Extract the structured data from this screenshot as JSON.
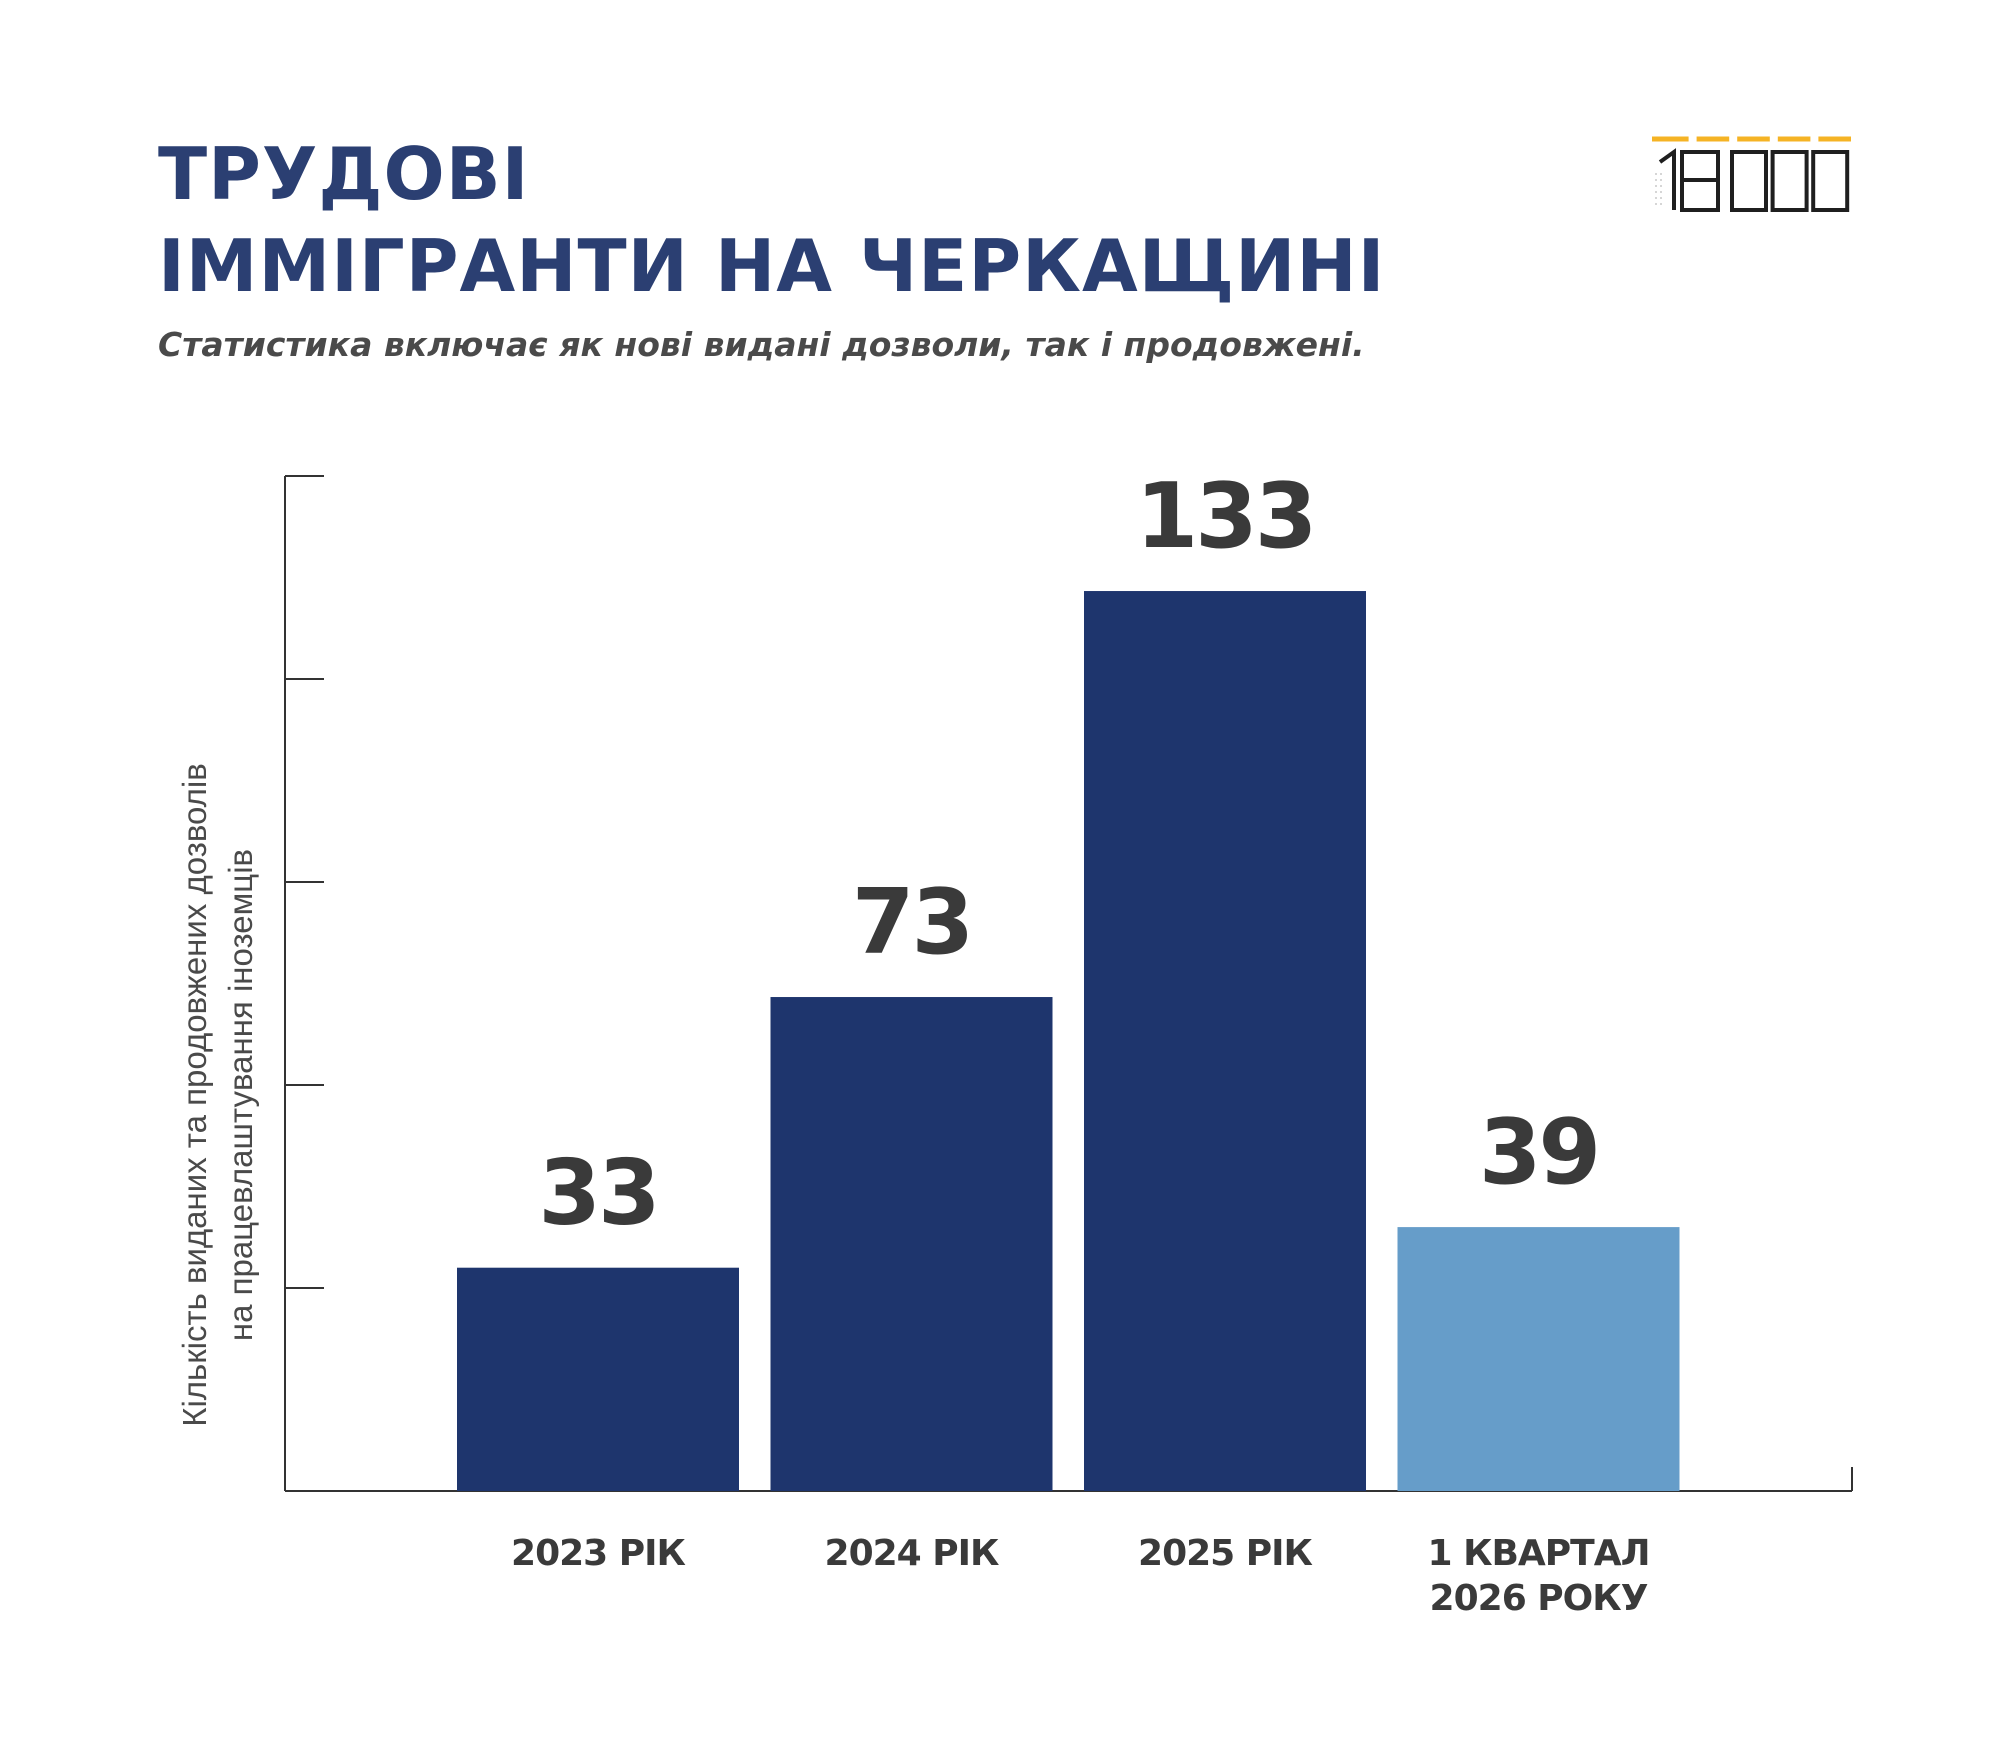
{
  "header": {
    "title_line1": "ТРУДОВІ",
    "title_line2": "ІММІГРАНТИ НА ЧЕРКАЩИНІ",
    "subtitle": "Статистика включає як нові видані дозволи, так і продовжені."
  },
  "logo": {
    "text": "18000",
    "accent_color": "#f5b324",
    "text_color": "#1f1f1f"
  },
  "chart_data": {
    "type": "bar",
    "categories": [
      [
        "2023 РІК"
      ],
      [
        "2024 РІК"
      ],
      [
        "2025 РІК"
      ],
      [
        "1 КВАРТАЛ",
        "2026 РОКУ"
      ]
    ],
    "values": [
      33,
      73,
      133,
      39
    ],
    "bar_colors": [
      "#1e356d",
      "#1e356d",
      "#1e356d",
      "#669dc9"
    ],
    "ylabel_line1": "Кількість виданих та продовжених дозволів",
    "ylabel_line2": "на працевлаштування іноземців",
    "ylim": [
      0,
      150
    ],
    "ytick_step": 30,
    "ytick_labels_shown": false,
    "grid": false,
    "data_labels": true,
    "data_label_color": "#3a3a3a",
    "axis_color": "#333333"
  }
}
